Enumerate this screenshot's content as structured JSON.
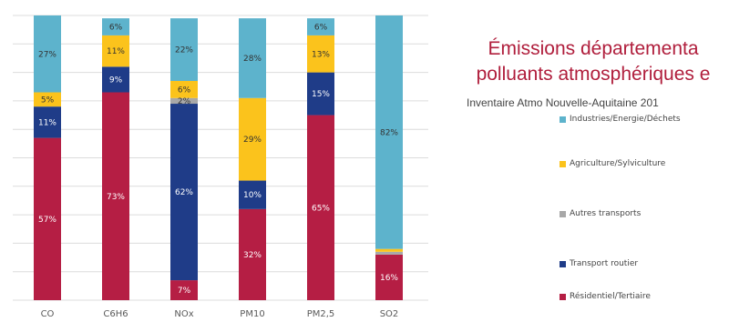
{
  "header": {
    "title_line1": "Émissions départementa",
    "title_line2": "polluants atmosphériques e",
    "subtitle": "Inventaire Atmo Nouvelle-Aquitaine 201"
  },
  "colors": {
    "Industries/Energie/Déchets": "#5db3cc",
    "Agriculture/Sylviculture": "#fbc31c",
    "Autres transports": "#a8a8a8",
    "Transport routier": "#1f3c88",
    "Résidentiel/Tertiaire": "#b51e44"
  },
  "chart_data": {
    "type": "bar",
    "stacked": true,
    "categories": [
      "CO",
      "C6H6",
      "NOx",
      "PM10",
      "PM2,5",
      "SO2"
    ],
    "ylim": [
      0,
      100
    ],
    "grid": true,
    "legend_position": "right",
    "title": "",
    "xlabel": "",
    "ylabel": "",
    "series": [
      {
        "name": "Résidentiel/Tertiaire",
        "values": [
          57,
          73,
          7,
          32,
          65,
          16
        ],
        "labels": [
          "57%",
          "73%",
          "7%",
          "32%",
          "65%",
          "16%"
        ]
      },
      {
        "name": "Transport routier",
        "values": [
          11,
          9,
          62,
          10,
          15,
          0
        ],
        "labels": [
          "11%",
          "9%",
          "62%",
          "10%",
          "15%",
          ""
        ]
      },
      {
        "name": "Autres transports",
        "values": [
          0,
          0,
          2,
          0,
          0,
          1
        ],
        "labels": [
          "",
          "",
          "2%",
          "",
          "",
          ""
        ]
      },
      {
        "name": "Agriculture/Sylviculture",
        "values": [
          5,
          11,
          6,
          29,
          13,
          1
        ],
        "labels": [
          "5%",
          "11%",
          "6%",
          "29%",
          "13%",
          ""
        ]
      },
      {
        "name": "Industries/Energie/Déchets",
        "values": [
          27,
          6,
          22,
          28,
          6,
          82
        ],
        "labels": [
          "27%",
          "6%",
          "22%",
          "28%",
          "6%",
          "82%"
        ]
      }
    ],
    "legend": [
      "Industries/Energie/Déchets",
      "Agriculture/Sylviculture",
      "Autres transports",
      "Transport routier",
      "Résidentiel/Tertiaire"
    ]
  }
}
